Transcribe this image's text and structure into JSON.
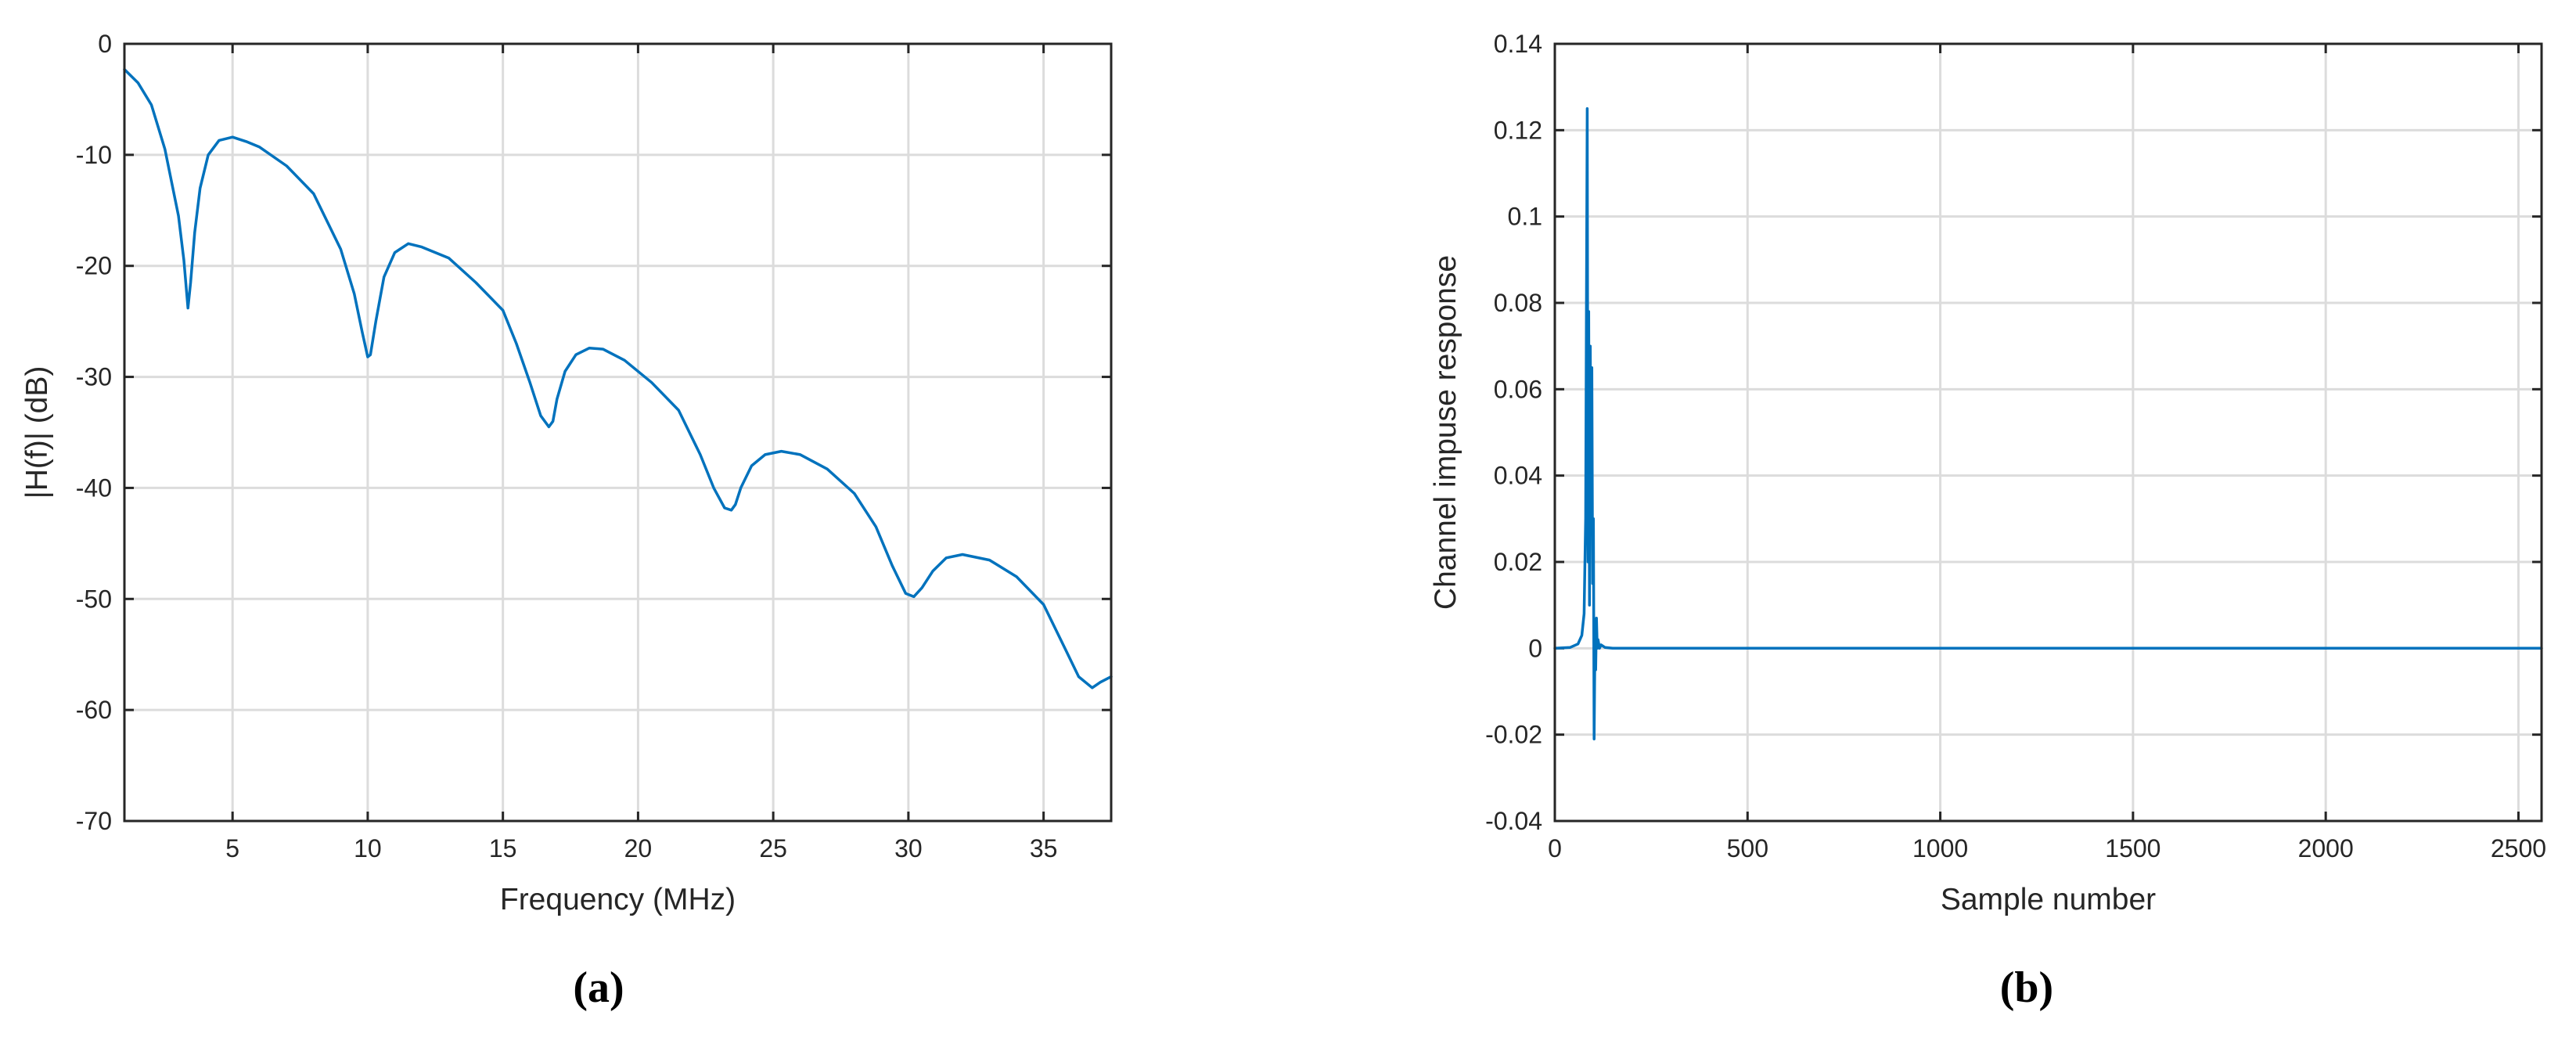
{
  "colors": {
    "series": "#0072BD",
    "axis": "#262626",
    "grid": "#DCDCDC"
  },
  "chart_data": [
    {
      "type": "line",
      "panel_label": "(a)",
      "xlabel": "Frequency (MHz)",
      "ylabel": "|H(f)| (dB)",
      "xlim": [
        1,
        37.5
      ],
      "ylim": [
        -70,
        0
      ],
      "xticks": [
        5,
        10,
        15,
        20,
        25,
        30,
        35
      ],
      "yticks": [
        -70,
        -60,
        -50,
        -40,
        -30,
        -20,
        -10,
        0
      ],
      "grid": true,
      "series": [
        {
          "x": [
            1,
            1.5,
            2,
            2.5,
            3,
            3.2,
            3.35,
            3.45,
            3.6,
            3.8,
            4.1,
            4.5,
            5,
            5.5,
            6,
            7,
            8,
            9,
            9.5,
            9.8,
            10,
            10.1,
            10.3,
            10.6,
            11,
            11.5,
            12,
            13,
            14,
            15,
            15.5,
            16,
            16.4,
            16.7,
            16.85,
            17,
            17.3,
            17.7,
            18.2,
            18.7,
            19.5,
            20.5,
            21.5,
            22.3,
            22.8,
            23.2,
            23.45,
            23.6,
            23.8,
            24.2,
            24.7,
            25.3,
            26,
            27,
            28,
            28.8,
            29.4,
            29.9,
            30.2,
            30.5,
            30.9,
            31.4,
            32,
            33,
            34,
            35,
            35.8,
            36.3,
            36.8,
            37.1,
            37.5
          ],
          "values": [
            -2.3,
            -3.5,
            -5.5,
            -9.5,
            -15.5,
            -19.5,
            -23.8,
            -21.5,
            -17.0,
            -13.0,
            -10.0,
            -8.7,
            -8.4,
            -8.8,
            -9.3,
            -11.0,
            -13.5,
            -18.5,
            -22.5,
            -26.0,
            -28.2,
            -28.0,
            -25.0,
            -21.0,
            -18.8,
            -18.0,
            -18.3,
            -19.3,
            -21.5,
            -24.0,
            -27.0,
            -30.5,
            -33.5,
            -34.5,
            -34.0,
            -32.0,
            -29.5,
            -28.0,
            -27.4,
            -27.5,
            -28.5,
            -30.5,
            -33.0,
            -37.0,
            -40.0,
            -41.8,
            -42.0,
            -41.5,
            -40.0,
            -38.0,
            -37.0,
            -36.7,
            -37.0,
            -38.3,
            -40.5,
            -43.5,
            -47.0,
            -49.5,
            -49.8,
            -49.0,
            -47.5,
            -46.3,
            -46.0,
            -46.5,
            -48.0,
            -50.5,
            -54.5,
            -57.0,
            -58.0,
            -57.5,
            -57.0
          ]
        }
      ]
    },
    {
      "type": "line",
      "panel_label": "(b)",
      "xlabel": "Sample number",
      "ylabel": "Channel impuse response",
      "xlim": [
        0,
        2560
      ],
      "ylim": [
        -0.04,
        0.14
      ],
      "xticks": [
        0,
        500,
        1000,
        1500,
        2000,
        2500
      ],
      "yticks": [
        -0.04,
        -0.02,
        0,
        0.02,
        0.04,
        0.06,
        0.08,
        0.1,
        0.12,
        0.14
      ],
      "xtick_labels": [
        "0",
        "500",
        "1000",
        "1500",
        "2000",
        "2500"
      ],
      "ytick_labels": [
        "-0.04",
        "-0.02",
        "0",
        "0.02",
        "0.04",
        "0.06",
        "0.08",
        "0.1",
        "0.12",
        "0.14"
      ],
      "grid": true,
      "series": [
        {
          "x": [
            0,
            40,
            60,
            70,
            76,
            80,
            82,
            84,
            86,
            88,
            90,
            92,
            94,
            96,
            98,
            100,
            102,
            104,
            106,
            108,
            110,
            112,
            116,
            120,
            130,
            150,
            200,
            500,
            1000,
            1500,
            2000,
            2560
          ],
          "values": [
            0,
            0.0002,
            0.001,
            0.003,
            0.008,
            0.03,
            0.08,
            0.125,
            0.02,
            0.078,
            0.01,
            0.07,
            0.035,
            0.065,
            0.015,
            0.03,
            -0.021,
            0.0,
            -0.005,
            0.007,
            0.0,
            0.002,
            0.0,
            0.0008,
            0.0002,
            0.0,
            0.0,
            0.0,
            0.0,
            0.0,
            0.0,
            0.0
          ]
        }
      ]
    }
  ]
}
